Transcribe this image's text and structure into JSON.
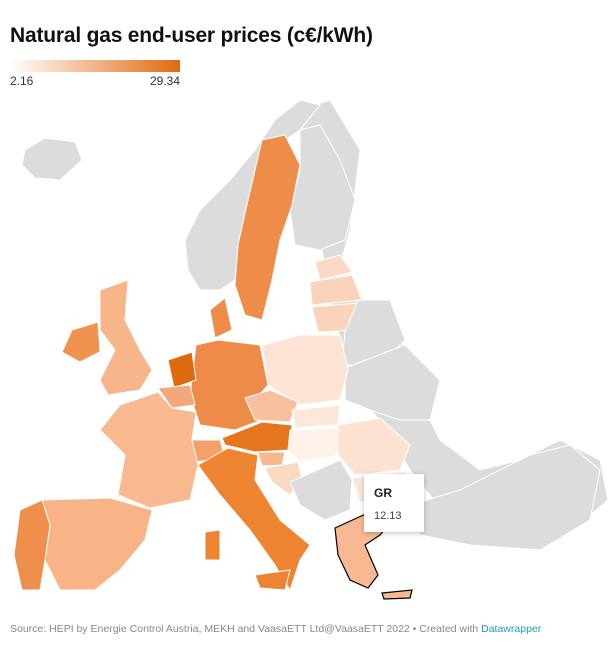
{
  "title": "Natural gas end-user prices (c€/kWh)",
  "legend": {
    "min": "2.16",
    "max": "29.34",
    "color_low": "#ffffff",
    "color_high": "#e06a10"
  },
  "map": {
    "no_data_color": "#dcdcdc",
    "country_fills": {
      "SE": "#ee8c4a",
      "NO": "#dcdcdc",
      "FI": "#dcdcdc",
      "IS": "#dcdcdc",
      "GB": "#f7b58a",
      "IE": "#f0934f",
      "FR": "#f9b990",
      "ES": "#f8b487",
      "PT": "#ee8f4c",
      "NL": "#e06a10",
      "BE": "#f4a77a",
      "DE": "#ef8b48",
      "DK": "#ee8c4a",
      "AT": "#e5761e",
      "CH": "#f5a06a",
      "IT": "#ee8432",
      "PL": "#fde4d4",
      "CZ": "#f9c0a0",
      "LT": "#fbd3bb",
      "LV": "#fbd3bb",
      "EE": "#fcd9c4",
      "SK": "#fee8dc",
      "HU": "#fff2ea",
      "RO": "#fde2d1",
      "BG": "#fde6d8",
      "HR": "#fbd8c2",
      "SI": "#f8b88f",
      "GR": "#f8b992"
    }
  },
  "tooltip": {
    "label": "GR",
    "value": "12.13"
  },
  "footer": {
    "source": "Source: HEPI by Energie Control Austria, MEKH and VaasaETT Ltd@VaasaETT 2022 • Created with ",
    "link": "Datawrapper"
  }
}
